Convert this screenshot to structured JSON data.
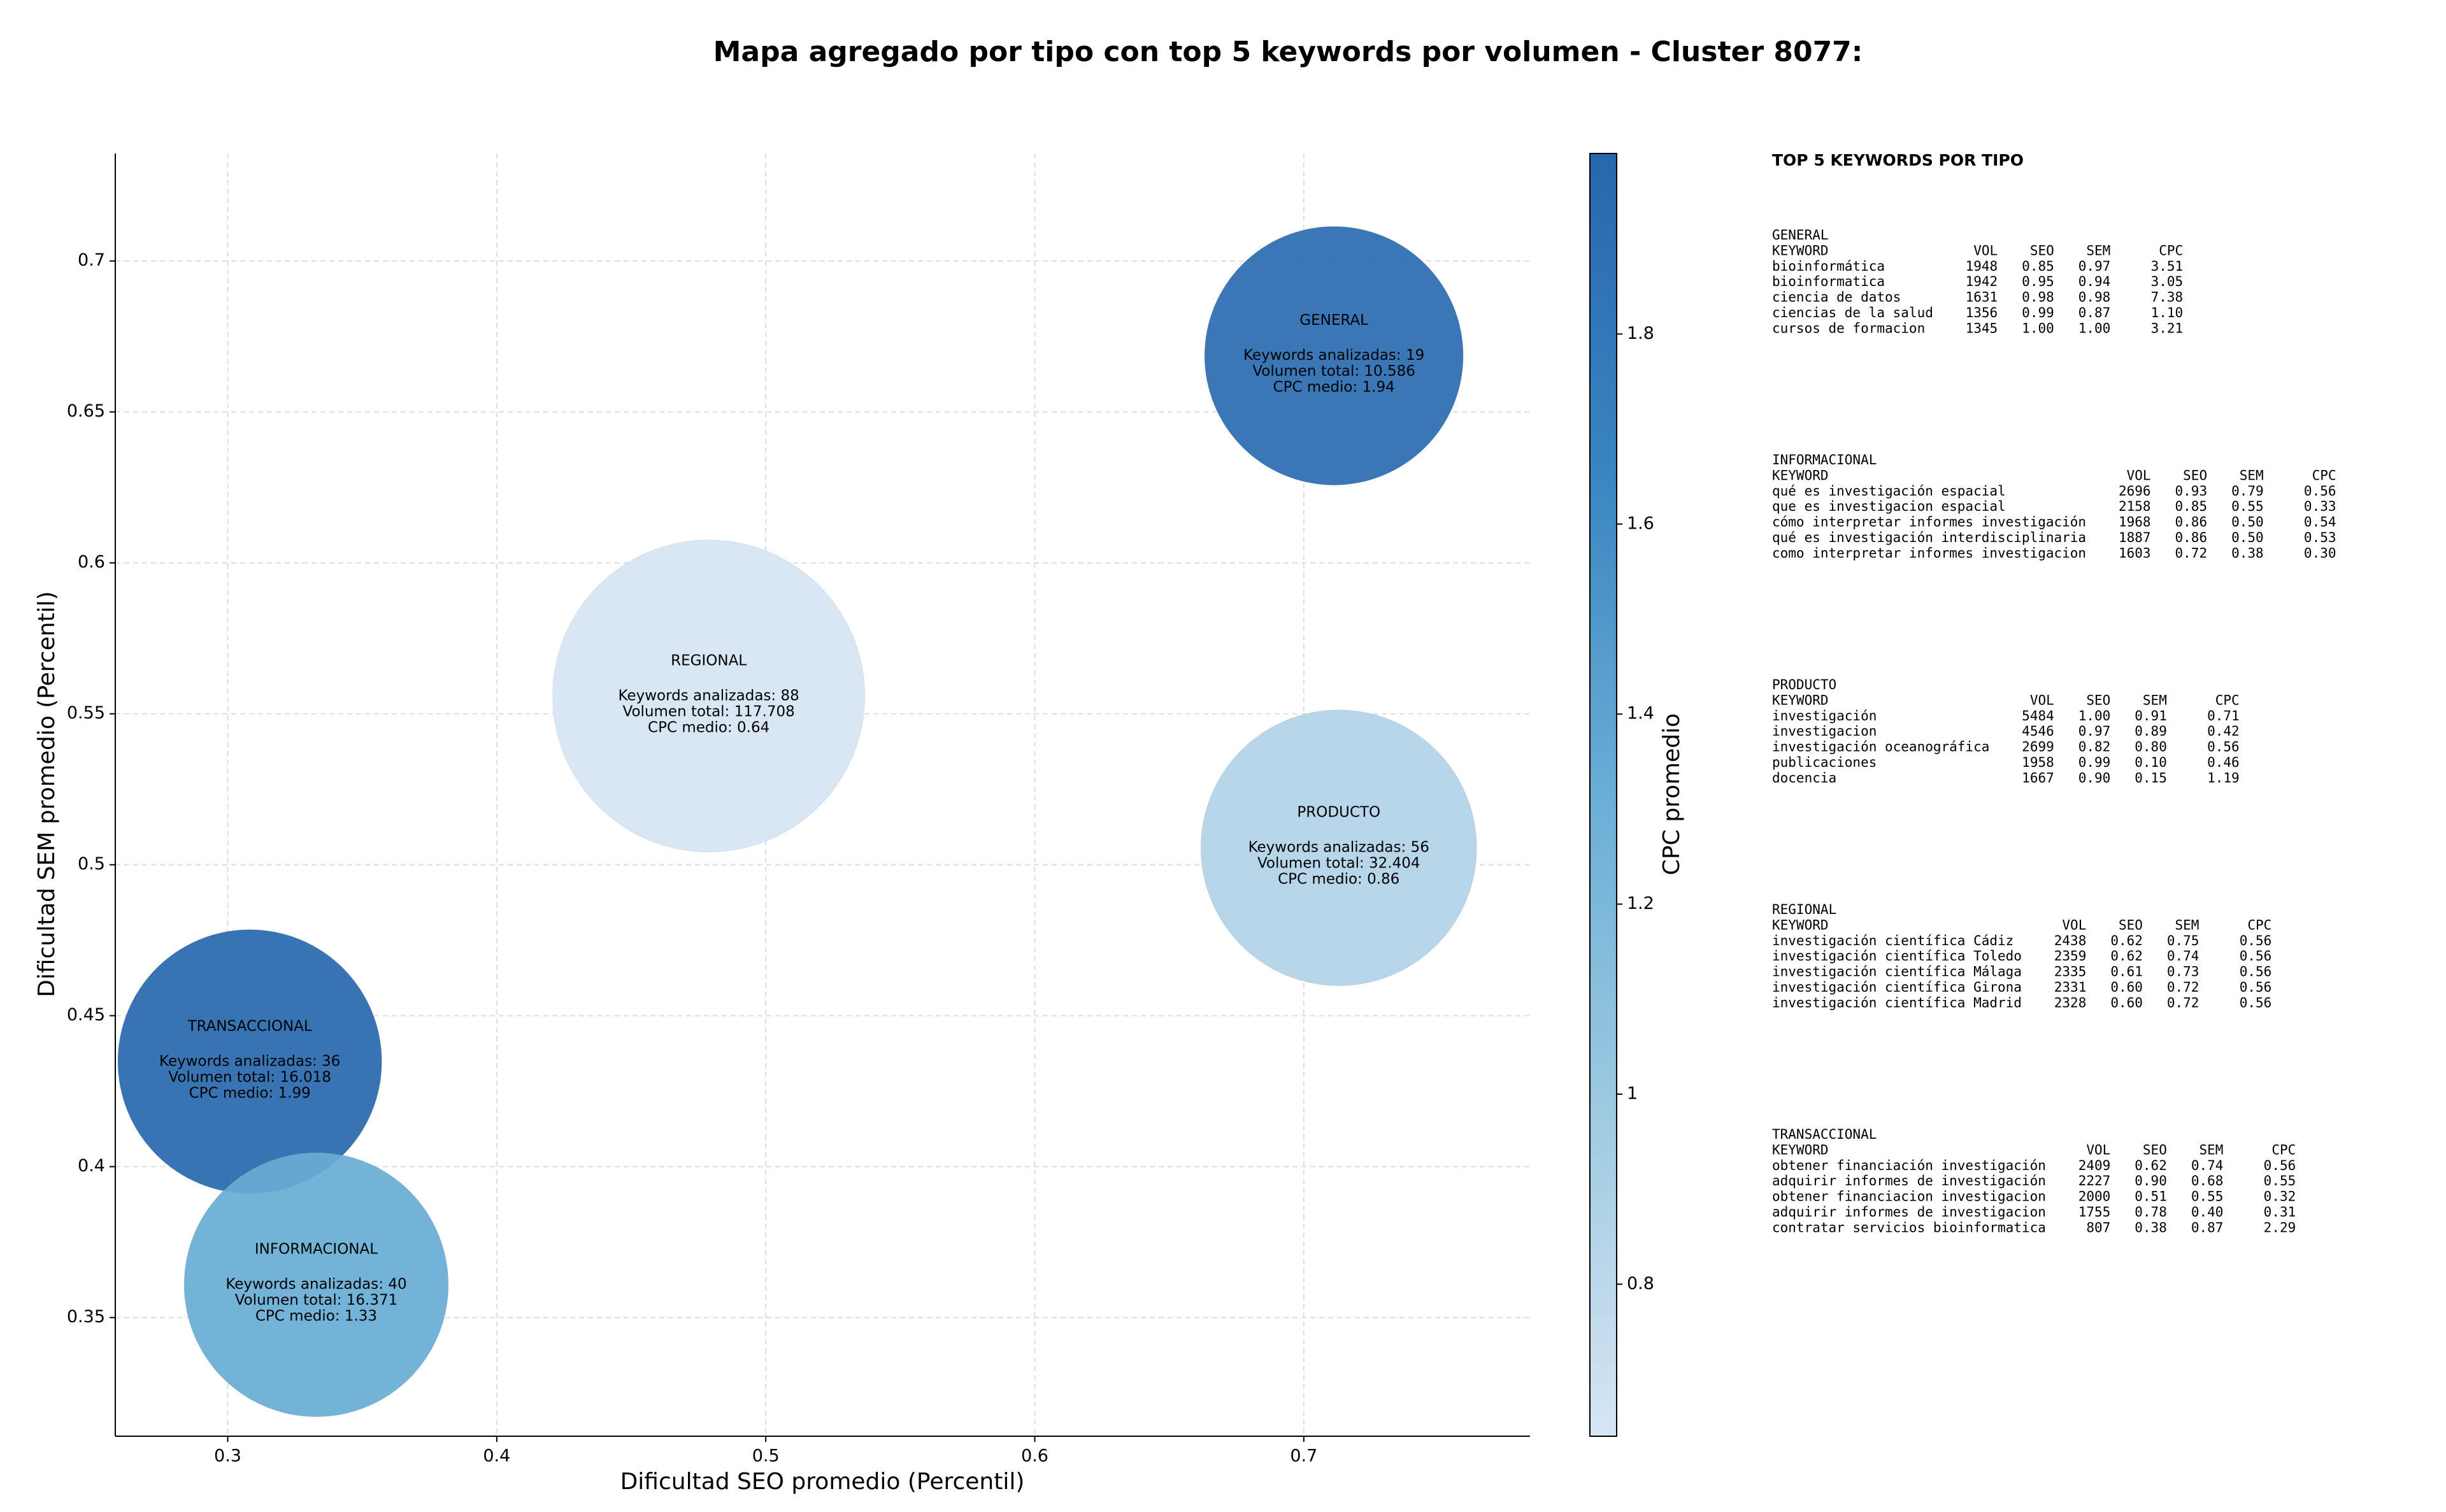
{
  "chart_data": {
    "type": "bubble",
    "title": "Mapa agregado por tipo con top 5 keywords por volumen - Cluster 8077:",
    "x_label": "Dificultad SEO promedio (Percentil)",
    "y_label": "Dificultad SEM promedio (Percentil)",
    "colorbar_label": "CPC promedio",
    "xlim": [
      0.2582,
      0.7841
    ],
    "xticks": [
      0.3,
      0.4,
      0.5,
      0.6,
      0.7
    ],
    "ylim": [
      0.3107,
      0.7356
    ],
    "yticks": [
      0.35,
      0.4,
      0.45,
      0.5,
      0.55,
      0.6,
      0.65,
      0.7
    ],
    "clim": [
      0.64,
      1.99
    ],
    "cticks": [
      0.8,
      1.0,
      1.2,
      1.4,
      1.6,
      1.8
    ],
    "colormap": [
      "#d6e5f4",
      "#9ecae1",
      "#6aaed6",
      "#3a85c1",
      "#2767ad"
    ],
    "grid": true,
    "points": [
      {
        "name": "GENERAL",
        "x": 0.7112,
        "y": 0.6686,
        "volume": 10586,
        "cpc": 1.94,
        "labels": [
          "Keywords analizadas: 19",
          "Volumen total: 10.586",
          "CPC medio: 1.94"
        ]
      },
      {
        "name": "REGIONAL",
        "x": 0.4788,
        "y": 0.5559,
        "volume": 117708,
        "cpc": 0.64,
        "labels": [
          "Keywords analizadas: 88",
          "Volumen total: 117.708",
          "CPC medio: 0.64"
        ]
      },
      {
        "name": "PRODUCTO",
        "x": 0.713,
        "y": 0.5056,
        "volume": 32404,
        "cpc": 0.86,
        "labels": [
          "Keywords analizadas: 56",
          "Volumen total: 32.404",
          "CPC medio: 0.86"
        ]
      },
      {
        "name": "TRANSACCIONAL",
        "x": 0.3082,
        "y": 0.4348,
        "volume": 16018,
        "cpc": 1.99,
        "labels": [
          "Keywords analizadas: 36",
          "Volumen total: 16.018",
          "CPC medio: 1.99"
        ]
      },
      {
        "name": "INFORMACIONAL",
        "x": 0.3329,
        "y": 0.3609,
        "volume": 16371,
        "cpc": 1.33,
        "labels": [
          "Keywords analizadas: 40",
          "Volumen total: 16.371",
          "CPC medio: 1.33"
        ]
      }
    ]
  },
  "side_panel": {
    "title": "TOP 5 KEYWORDS POR TIPO",
    "tables": [
      {
        "name": "GENERAL",
        "columns": [
          "KEYWORD",
          "VOL",
          "SEO",
          "SEM",
          "CPC"
        ],
        "rows": [
          [
            "bioinformática",
            "1948",
            "0.85",
            "0.97",
            "3.51"
          ],
          [
            "bioinformatica",
            "1942",
            "0.95",
            "0.94",
            "3.05"
          ],
          [
            "ciencia de datos",
            "1631",
            "0.98",
            "0.98",
            "7.38"
          ],
          [
            "ciencias de la salud",
            "1356",
            "0.99",
            "0.87",
            "1.10"
          ],
          [
            "cursos de formacion",
            "1345",
            "1.00",
            "1.00",
            "3.21"
          ]
        ]
      },
      {
        "name": "INFORMACIONAL",
        "columns": [
          "KEYWORD",
          "VOL",
          "SEO",
          "SEM",
          "CPC"
        ],
        "rows": [
          [
            "qué es investigación espacial",
            "2696",
            "0.93",
            "0.79",
            "0.56"
          ],
          [
            "que es investigacion espacial",
            "2158",
            "0.85",
            "0.55",
            "0.33"
          ],
          [
            "cómo interpretar informes investigación",
            "1968",
            "0.86",
            "0.50",
            "0.54"
          ],
          [
            "qué es investigación interdisciplinaria",
            "1887",
            "0.86",
            "0.50",
            "0.53"
          ],
          [
            "como interpretar informes investigacion",
            "1603",
            "0.72",
            "0.38",
            "0.30"
          ]
        ]
      },
      {
        "name": "PRODUCTO",
        "columns": [
          "KEYWORD",
          "VOL",
          "SEO",
          "SEM",
          "CPC"
        ],
        "rows": [
          [
            "investigación",
            "5484",
            "1.00",
            "0.91",
            "0.71"
          ],
          [
            "investigacion",
            "4546",
            "0.97",
            "0.89",
            "0.42"
          ],
          [
            "investigación oceanográfica",
            "2699",
            "0.82",
            "0.80",
            "0.56"
          ],
          [
            "publicaciones",
            "1958",
            "0.99",
            "0.10",
            "0.46"
          ],
          [
            "docencia",
            "1667",
            "0.90",
            "0.15",
            "1.19"
          ]
        ]
      },
      {
        "name": "REGIONAL",
        "columns": [
          "KEYWORD",
          "VOL",
          "SEO",
          "SEM",
          "CPC"
        ],
        "rows": [
          [
            "investigación científica Cádiz",
            "2438",
            "0.62",
            "0.75",
            "0.56"
          ],
          [
            "investigación científica Toledo",
            "2359",
            "0.62",
            "0.74",
            "0.56"
          ],
          [
            "investigación científica Málaga",
            "2335",
            "0.61",
            "0.73",
            "0.56"
          ],
          [
            "investigación científica Girona",
            "2331",
            "0.60",
            "0.72",
            "0.56"
          ],
          [
            "investigación científica Madrid",
            "2328",
            "0.60",
            "0.72",
            "0.56"
          ]
        ]
      },
      {
        "name": "TRANSACCIONAL",
        "columns": [
          "KEYWORD",
          "VOL",
          "SEO",
          "SEM",
          "CPC"
        ],
        "rows": [
          [
            "obtener financiación investigación",
            "2409",
            "0.62",
            "0.74",
            "0.56"
          ],
          [
            "adquirir informes de investigación",
            "2227",
            "0.90",
            "0.68",
            "0.55"
          ],
          [
            "obtener financiacion investigacion",
            "2000",
            "0.51",
            "0.55",
            "0.32"
          ],
          [
            "adquirir informes de investigacion",
            "1755",
            "0.78",
            "0.40",
            "0.31"
          ],
          [
            "contratar servicios bioinformatica",
            "807",
            "0.38",
            "0.87",
            "2.29"
          ]
        ]
      }
    ]
  }
}
